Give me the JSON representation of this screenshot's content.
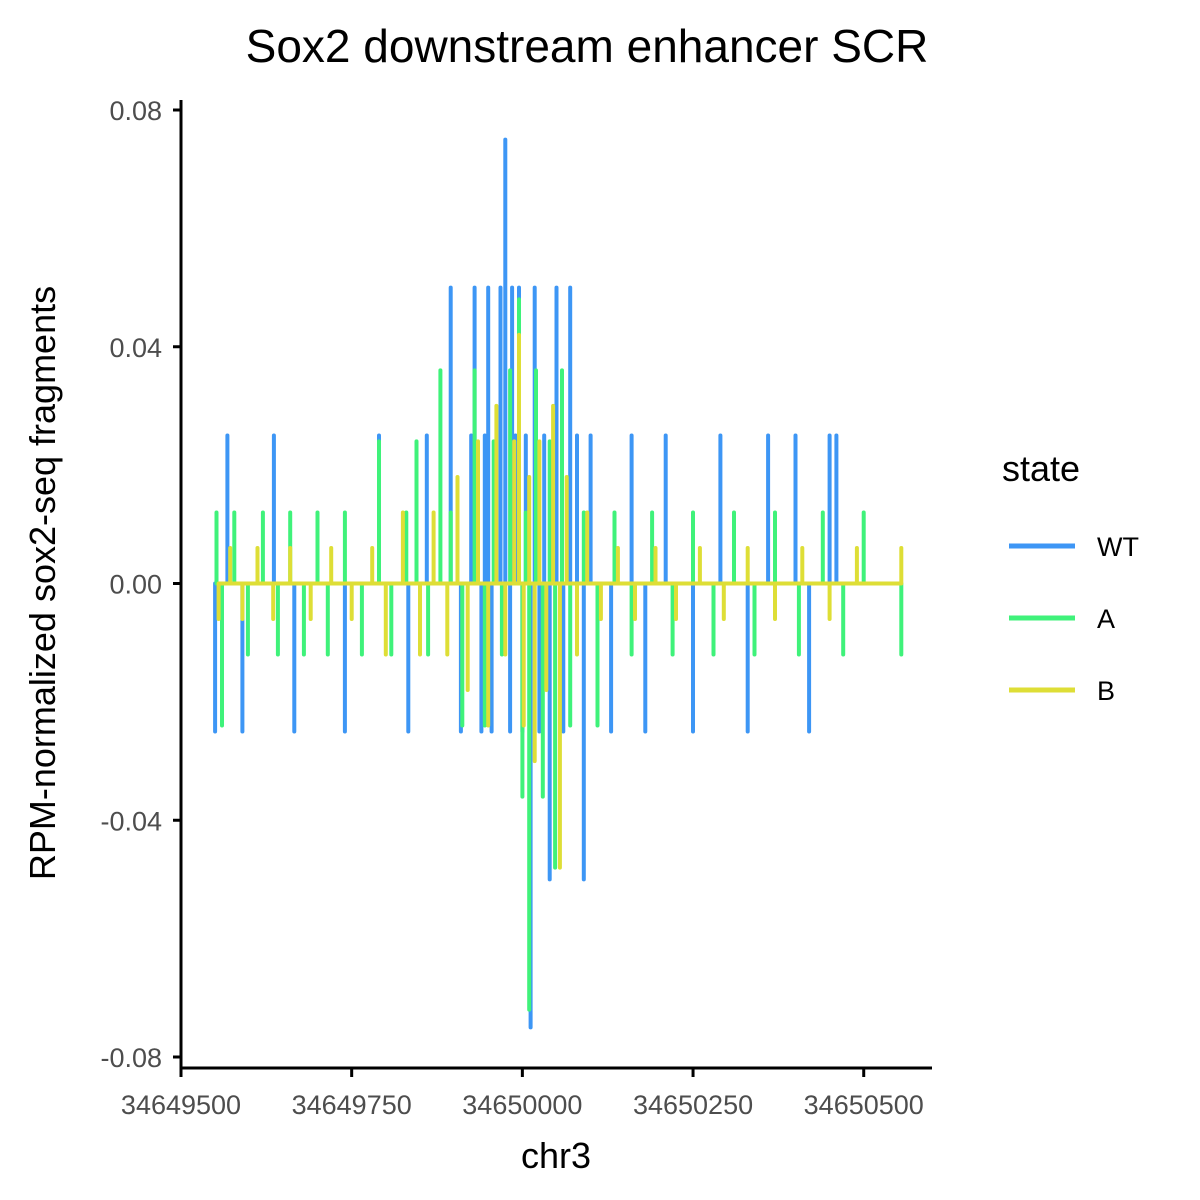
{
  "chart_data": {
    "type": "line",
    "title": "Sox2 downstream enhancer SCR",
    "xlabel": "chr3",
    "ylabel": "RPM-normalized sox2-seq fragments",
    "xlim": [
      34649500,
      34650600
    ],
    "ylim": [
      -0.08,
      0.08
    ],
    "x_ticks": [
      34649500,
      34649750,
      34650000,
      34650250,
      34650500
    ],
    "x_tick_labels": [
      "34649500",
      "34649750",
      "34650000",
      "34650250",
      "34650500"
    ],
    "y_ticks": [
      0.08,
      0.04,
      0.0,
      -0.04,
      -0.08
    ],
    "y_tick_labels": [
      "0.08",
      "0.04",
      "0.00",
      "-0.04",
      "-0.08"
    ],
    "legend": {
      "title": "state",
      "position": "right",
      "entries": [
        {
          "name": "WT",
          "color": "#3d96f5"
        },
        {
          "name": "A",
          "color": "#3ff27a"
        },
        {
          "name": "B",
          "color": "#dede36"
        }
      ]
    },
    "series": [
      {
        "name": "WT",
        "color": "#3d96f5",
        "x": [
          34649550,
          34649568,
          34649590,
          34649636,
          34649666,
          34649700,
          34649740,
          34649790,
          34649833,
          34649860,
          34649895,
          34649910,
          34649925,
          34649930,
          34649940,
          34649945,
          34649950,
          34649955,
          34649960,
          34649968,
          34649975,
          34649982,
          34649985,
          34649990,
          34649995,
          34650000,
          34650005,
          34650012,
          34650018,
          34650025,
          34650032,
          34650040,
          34650050,
          34650060,
          34650070,
          34650080,
          34650090,
          34650100,
          34650130,
          34650160,
          34650180,
          34650210,
          34650250,
          34650290,
          34650330,
          34650360,
          34650375,
          34650400,
          34650420,
          34650450,
          34650460
        ],
        "y": [
          -0.025,
          0.025,
          -0.025,
          0.025,
          -0.025,
          0.0,
          -0.025,
          0.025,
          -0.025,
          0.025,
          0.05,
          -0.025,
          0.025,
          0.05,
          -0.025,
          0.025,
          0.05,
          -0.025,
          0.02,
          0.05,
          0.075,
          -0.025,
          0.05,
          0.025,
          0.05,
          -0.025,
          0.025,
          -0.075,
          0.05,
          -0.025,
          0.025,
          -0.05,
          0.05,
          -0.025,
          0.05,
          0.025,
          -0.05,
          0.025,
          -0.025,
          0.025,
          -0.025,
          0.025,
          -0.025,
          0.025,
          -0.025,
          0.025,
          0.0,
          0.025,
          -0.025,
          0.025,
          0.025
        ]
      },
      {
        "name": "A",
        "color": "#3ff27a",
        "x": [
          34649552,
          34649560,
          34649578,
          34649598,
          34649620,
          34649642,
          34649660,
          34649680,
          34649700,
          34649715,
          34649740,
          34649765,
          34649790,
          34649808,
          34649830,
          34649845,
          34649862,
          34649880,
          34649895,
          34649912,
          34649930,
          34649945,
          34649958,
          34649970,
          34649982,
          34649995,
          34650000,
          34650005,
          34650010,
          34650020,
          34650030,
          34650040,
          34650048,
          34650058,
          34650070,
          34650090,
          34650110,
          34650135,
          34650160,
          34650190,
          34650220,
          34650250,
          34650280,
          34650310,
          34650340,
          34650370,
          34650405,
          34650440,
          34650470,
          34650500,
          34650555
        ],
        "y": [
          0.012,
          -0.024,
          0.012,
          -0.012,
          0.012,
          -0.012,
          0.012,
          -0.012,
          0.012,
          -0.012,
          0.012,
          -0.012,
          0.024,
          -0.012,
          0.012,
          0.024,
          -0.012,
          0.036,
          0.012,
          -0.024,
          0.036,
          -0.024,
          0.024,
          -0.012,
          0.036,
          0.048,
          -0.036,
          0.012,
          -0.072,
          0.036,
          -0.036,
          0.024,
          -0.048,
          0.036,
          -0.024,
          0.012,
          -0.024,
          0.012,
          -0.012,
          0.012,
          -0.012,
          0.012,
          -0.012,
          0.012,
          -0.012,
          0.012,
          -0.012,
          0.012,
          -0.012,
          0.012,
          -0.012
        ]
      },
      {
        "name": "B",
        "color": "#dede36",
        "x": [
          34649555,
          34649572,
          34649590,
          34649612,
          34649635,
          34649660,
          34649690,
          34649720,
          34649750,
          34649780,
          34649800,
          34649825,
          34649850,
          34649870,
          34649890,
          34649905,
          34649920,
          34649935,
          34649950,
          34649962,
          34649975,
          34649988,
          34649995,
          34650002,
          34650010,
          34650018,
          34650025,
          34650035,
          34650045,
          34650055,
          34650065,
          34650080,
          34650095,
          34650115,
          34650140,
          34650165,
          34650195,
          34650225,
          34650260,
          34650295,
          34650330,
          34650370,
          34650410,
          34650450,
          34650490,
          34650520,
          34650555
        ],
        "y": [
          -0.006,
          0.006,
          -0.006,
          0.006,
          -0.006,
          0.006,
          -0.006,
          0.006,
          -0.006,
          0.006,
          -0.012,
          0.012,
          -0.012,
          0.012,
          -0.012,
          0.018,
          -0.018,
          0.024,
          -0.024,
          0.03,
          -0.012,
          0.024,
          0.042,
          -0.024,
          0.018,
          -0.03,
          0.024,
          -0.018,
          0.03,
          -0.048,
          0.018,
          -0.012,
          0.012,
          -0.006,
          0.006,
          -0.006,
          0.006,
          -0.006,
          0.006,
          -0.006,
          0.006,
          -0.006,
          0.006,
          -0.006,
          0.006,
          0.0,
          0.006
        ]
      }
    ]
  }
}
